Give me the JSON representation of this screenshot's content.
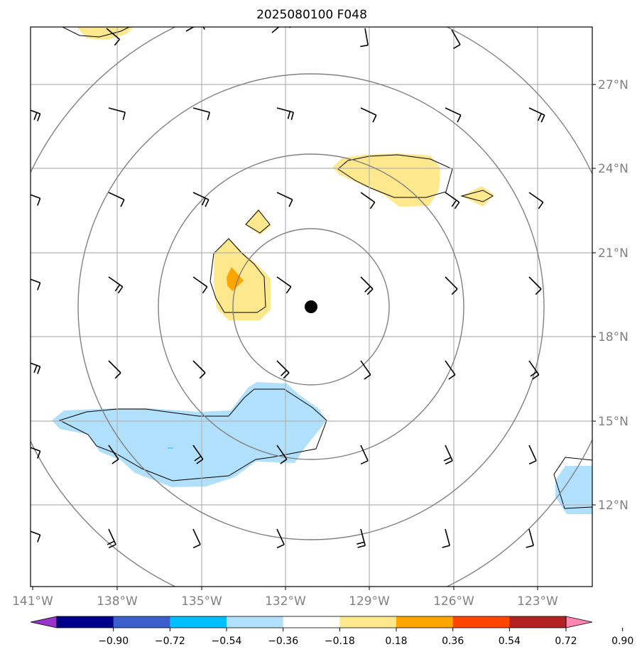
{
  "title": "2025080100 F048",
  "lon_labels": [
    "141°W",
    "138°W",
    "135°W",
    "132°W",
    "129°W",
    "126°W",
    "123°W"
  ],
  "lat_labels": [
    "27°N",
    "24°N",
    "21°N",
    "18°N",
    "15°N",
    "12°N"
  ],
  "colorbar": {
    "ticks": [
      "−0.90",
      "−0.72",
      "−0.54",
      "−0.36",
      "−0.18",
      "0.18",
      "0.36",
      "0.54",
      "0.72",
      "0.90"
    ],
    "colors": [
      "#9933cc",
      "#00008b",
      "#3a5fcd",
      "#00bfff",
      "#b0e0fb",
      "#ffffff",
      "#fde88d",
      "#ffa500",
      "#ff4500",
      "#b22222",
      "#ff86b0"
    ]
  },
  "colors": {
    "grid": "#b4b4b4",
    "range_rings": "#808080",
    "label_text": "#808080",
    "center_marker": "#000000"
  }
}
